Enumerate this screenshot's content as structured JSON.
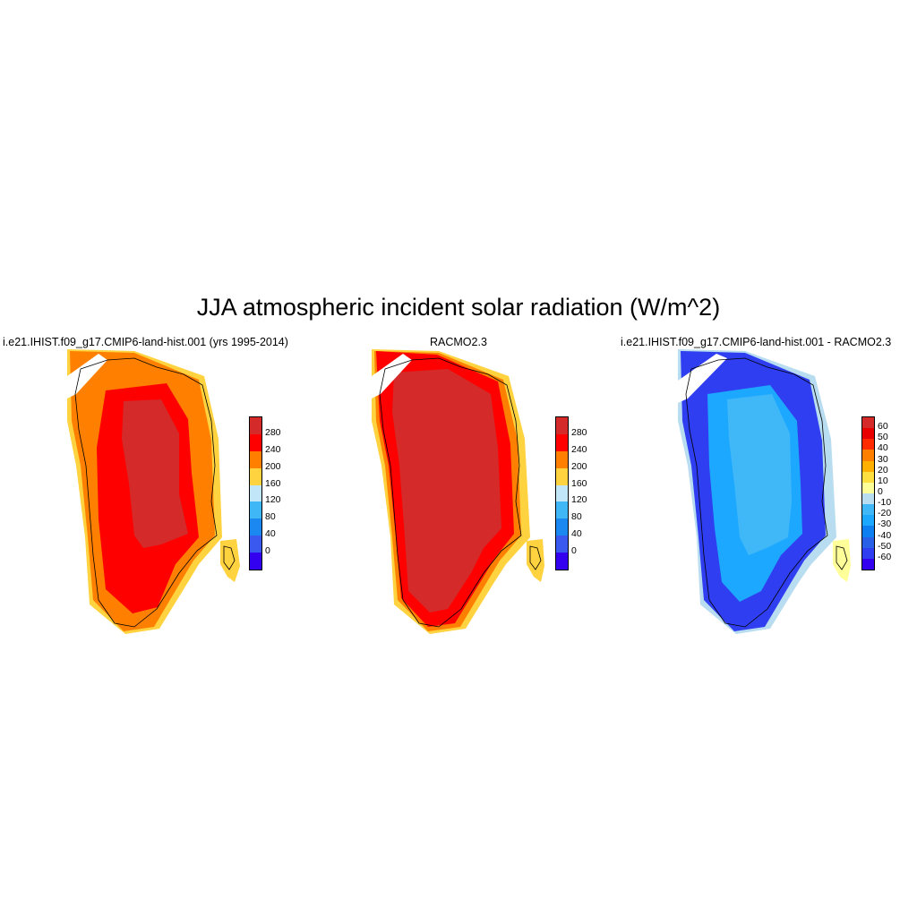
{
  "title": "JJA atmospheric incident solar radiation (W/m^2)",
  "panels": [
    {
      "title": "i.e21.IHIST.f09_g17.CMIP6-land-hist.001 (yrs 1995-2014)",
      "colorbar": {
        "colors": [
          "#d42a2a",
          "#ff0000",
          "#ff8000",
          "#ffd23f",
          "#c0e6f7",
          "#3fb6f5",
          "#1b87f0",
          "#3a5aef",
          "#3300f0"
        ],
        "labels": [
          "280",
          "240",
          "200",
          "160",
          "120",
          "80",
          "40",
          "0"
        ]
      }
    },
    {
      "title": "RACMO2.3",
      "colorbar": {
        "colors": [
          "#d42a2a",
          "#ff0000",
          "#ff8000",
          "#ffd23f",
          "#c0e6f7",
          "#3fb6f5",
          "#1b87f0",
          "#3a5aef",
          "#3300f0"
        ],
        "labels": [
          "280",
          "240",
          "200",
          "160",
          "120",
          "80",
          "40",
          "0"
        ]
      }
    },
    {
      "title": "i.e21.IHIST.f09_g17.CMIP6-land-hist.001 - RACMO2.3",
      "colorbar": {
        "colors": [
          "#d42a2a",
          "#e80000",
          "#ff2a00",
          "#ff8000",
          "#ffb000",
          "#ffe040",
          "#ffff99",
          "#b8dcf0",
          "#40b8f8",
          "#1da8ff",
          "#0e7ff0",
          "#2860e8",
          "#2f3ef0",
          "#3300f0"
        ],
        "labels": [
          "60",
          "50",
          "40",
          "30",
          "20",
          "10",
          "0",
          "-10",
          "-20",
          "-30",
          "-40",
          "-50",
          "-60"
        ]
      }
    }
  ]
}
